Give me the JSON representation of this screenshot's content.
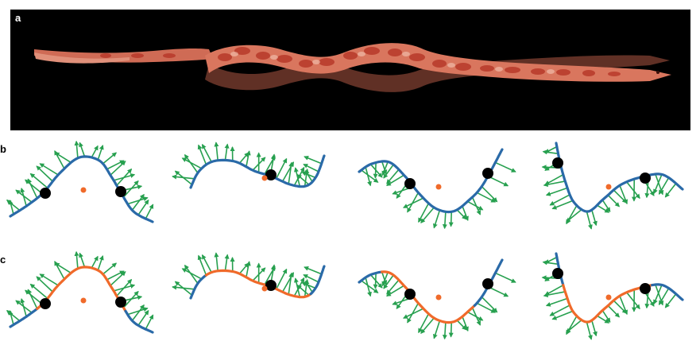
{
  "panels": {
    "a": {
      "label": "a"
    },
    "b": {
      "label": "b"
    },
    "c": {
      "label": "c"
    }
  },
  "colors": {
    "background_photo": "#000000",
    "snake_body": "#e07a5f",
    "snake_spots": "#c0392b",
    "curve_blue": "#2a6aa8",
    "curve_orange": "#f06a2a",
    "force_arrow": "#27a04f",
    "contact_point": "#000000",
    "center_of_mass": "#f06a2a"
  },
  "icons": {
    "contact_point": "black-dot-icon",
    "center_of_mass": "orange-dot-icon",
    "force_vector": "green-arrow-icon"
  }
}
